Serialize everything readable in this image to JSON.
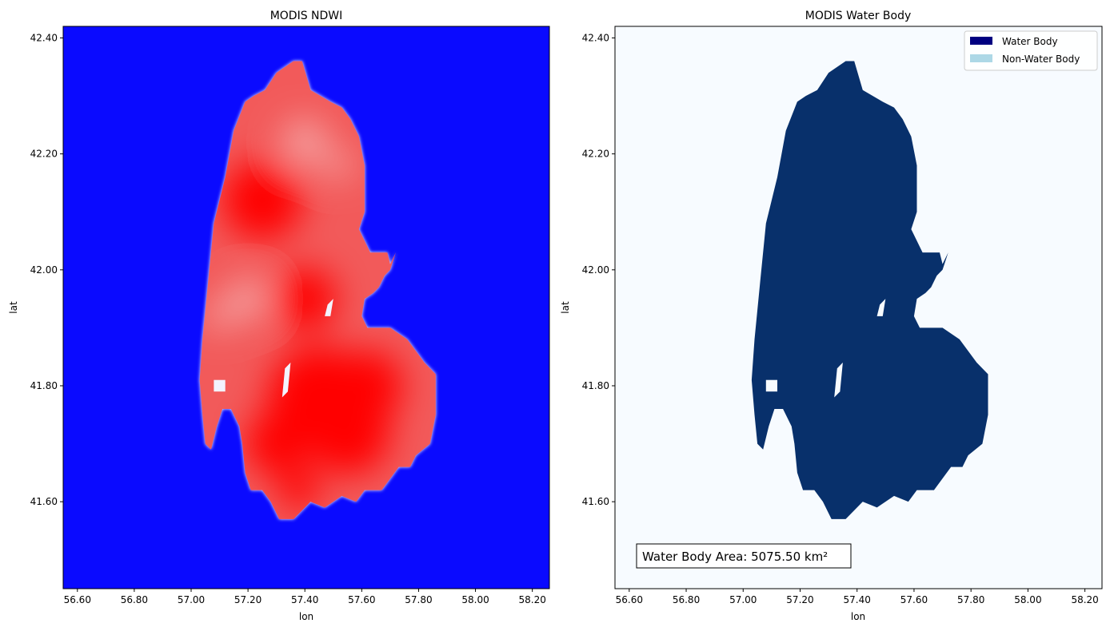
{
  "chart_data": [
    {
      "type": "heatmap",
      "title": "MODIS NDWI",
      "xlabel": "lon",
      "ylabel": "lat",
      "xlim": [
        56.55,
        58.26
      ],
      "ylim": [
        41.45,
        42.42
      ],
      "x_ticks": [
        "56.60",
        "56.80",
        "57.00",
        "57.20",
        "57.40",
        "57.60",
        "57.80",
        "58.00",
        "58.20"
      ],
      "y_ticks": [
        "41.60",
        "41.80",
        "42.00",
        "42.20",
        "42.40"
      ],
      "colormap": [
        "#0000ff",
        "#ffffff",
        "#ff0000"
      ],
      "background_color": "#0a0aff",
      "grid": false
    },
    {
      "type": "heatmap",
      "title": "MODIS Water Body",
      "xlabel": "lon",
      "ylabel": "lat",
      "xlim": [
        56.55,
        58.26
      ],
      "ylim": [
        41.45,
        42.42
      ],
      "x_ticks": [
        "56.60",
        "56.80",
        "57.00",
        "57.20",
        "57.40",
        "57.60",
        "57.80",
        "58.00",
        "58.20"
      ],
      "y_ticks": [
        "41.60",
        "41.80",
        "42.00",
        "42.20",
        "42.40"
      ],
      "legend": {
        "position": "top-right",
        "entries": [
          {
            "label": "Water Body",
            "color": "#000080"
          },
          {
            "label": "Non-Water Body",
            "color": "#add8e6"
          }
        ]
      },
      "annotation": "Water Body Area: 5075.50 km²",
      "water_color": "#08306b",
      "background_color": "#f7fbff",
      "grid": false
    }
  ],
  "lake_outline": [
    [
      57.36,
      42.36
    ],
    [
      57.39,
      42.36
    ],
    [
      57.42,
      42.31
    ],
    [
      57.49,
      42.29
    ],
    [
      57.53,
      42.28
    ],
    [
      57.56,
      42.26
    ],
    [
      57.59,
      42.23
    ],
    [
      57.61,
      42.18
    ],
    [
      57.61,
      42.1
    ],
    [
      57.59,
      42.07
    ],
    [
      57.61,
      42.05
    ],
    [
      57.63,
      42.03
    ],
    [
      57.65,
      42.03
    ],
    [
      57.69,
      42.03
    ],
    [
      57.7,
      42.01
    ],
    [
      57.72,
      42.03
    ],
    [
      57.7,
      42.0
    ],
    [
      57.68,
      41.99
    ],
    [
      57.66,
      41.97
    ],
    [
      57.64,
      41.96
    ],
    [
      57.61,
      41.95
    ],
    [
      57.6,
      41.92
    ],
    [
      57.62,
      41.9
    ],
    [
      57.7,
      41.9
    ],
    [
      57.76,
      41.88
    ],
    [
      57.82,
      41.84
    ],
    [
      57.86,
      41.82
    ],
    [
      57.86,
      41.75
    ],
    [
      57.84,
      41.7
    ],
    [
      57.79,
      41.68
    ],
    [
      57.77,
      41.66
    ],
    [
      57.73,
      41.66
    ],
    [
      57.67,
      41.62
    ],
    [
      57.61,
      41.62
    ],
    [
      57.58,
      41.6
    ],
    [
      57.53,
      41.61
    ],
    [
      57.47,
      41.59
    ],
    [
      57.42,
      41.6
    ],
    [
      57.36,
      41.57
    ],
    [
      57.31,
      41.57
    ],
    [
      57.28,
      41.6
    ],
    [
      57.25,
      41.62
    ],
    [
      57.21,
      41.62
    ],
    [
      57.19,
      41.65
    ],
    [
      57.18,
      41.7
    ],
    [
      57.17,
      41.73
    ],
    [
      57.14,
      41.76
    ],
    [
      57.11,
      41.76
    ],
    [
      57.09,
      41.73
    ],
    [
      57.07,
      41.69
    ],
    [
      57.05,
      41.7
    ],
    [
      57.04,
      41.75
    ],
    [
      57.03,
      41.81
    ],
    [
      57.04,
      41.88
    ],
    [
      57.06,
      41.98
    ],
    [
      57.08,
      42.08
    ],
    [
      57.12,
      42.16
    ],
    [
      57.15,
      42.24
    ],
    [
      57.19,
      42.29
    ],
    [
      57.22,
      42.3
    ],
    [
      57.26,
      42.31
    ],
    [
      57.3,
      42.34
    ]
  ],
  "inner_islands": [
    [
      [
        57.48,
        41.94
      ],
      [
        57.5,
        41.95
      ],
      [
        57.49,
        41.92
      ],
      [
        57.47,
        41.92
      ]
    ],
    [
      [
        57.33,
        41.83
      ],
      [
        57.35,
        41.84
      ],
      [
        57.34,
        41.79
      ],
      [
        57.32,
        41.78
      ]
    ],
    [
      [
        57.08,
        41.81
      ],
      [
        57.12,
        41.81
      ],
      [
        57.12,
        41.79
      ],
      [
        57.08,
        41.79
      ]
    ]
  ],
  "hotspots": [
    [
      57.25,
      42.12,
      0.28
    ],
    [
      57.45,
      41.78,
      0.36
    ],
    [
      57.55,
      41.72,
      0.3
    ],
    [
      57.4,
      41.95,
      0.22
    ],
    [
      57.62,
      41.8,
      0.25
    ],
    [
      57.3,
      41.7,
      0.22
    ],
    [
      57.38,
      41.62,
      0.14
    ]
  ],
  "lightspots": [
    [
      57.2,
      41.95,
      0.14
    ],
    [
      57.4,
      42.22,
      0.16
    ],
    [
      57.52,
      42.18,
      0.1
    ],
    [
      57.1,
      41.92,
      0.1
    ]
  ]
}
